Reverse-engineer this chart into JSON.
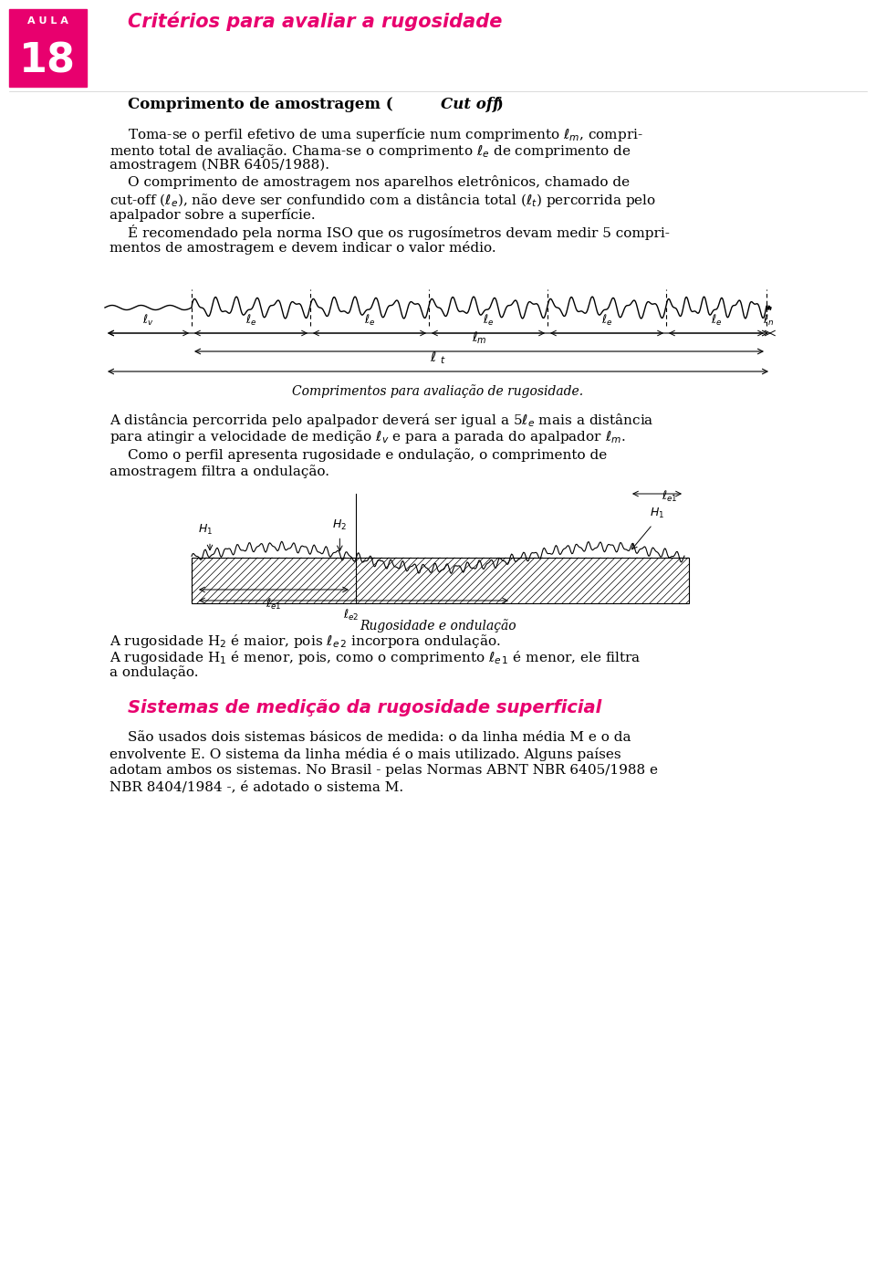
{
  "page_bg": "#ffffff",
  "header_bg": "#e8006e",
  "header_text_color": "#ffffff",
  "header_label": "A U L A",
  "header_number": "18",
  "title_color": "#e8006e",
  "title_text": "Critérios para avaliar a rugosidade",
  "body_color": "#000000",
  "section1_title": "Comprimento de amostragem (Cut off)",
  "para1": "Toma-se o perfil efetivo de uma superfície num comprimento $\\ell$m, compri-\nmento total de avaliação. Chama-se o comprimento $\\ell$e de comprimento de\namostragem (NBR 6405/1988).",
  "para2": "O comprimento de amostragem nos aparelhos eletrônicos, chamado de\ncut-off ($\\ell$e), não deve ser confundido com a distância total ($\\ell$t) percorrida pelo\napalpador sobre a superfície.",
  "para3": "É recomendado pela norma ISO que os rugosímetros devam medir 5 compri-\nmentos de amostragem e devem indicar o valor médio.",
  "fig1_caption": "Comprimentos para avaliação de rugosidade.",
  "para4": "A distância percorrida pelo apalpador deverá ser igual a 5$\\ell$e mais a distância\npara atingir a velocidade de medição $\\ell$v e para a parada do apalpador $\\ell$m.",
  "para5": "Como o perfil apresenta rugosidade e ondulação, o comprimento de\namostragem filtra a ondulação.",
  "fig2_caption": "Rugosidade e ondulação",
  "para6_line1": "A rugosidade H$_2$ é maior, pois$\\ell$$_{e\\,2}$ incorpora ondulação.",
  "para6_line2": "A rugosidade H$_1$ é menor, pois, como o comprimento$\\ell$$_{e\\,1}$ é menor, ele filtra",
  "para6_line3": "a ondulação.",
  "section2_title": "Sistemas de medição da rugosidade superficial",
  "para7": "São usados dois sistemas básicos de medida: o da linha média M e o da\nenvolvente E. O sistema da linha média é o mais utilizado. Alguns países\nadotam ambos os sistemas. No Brasil - pelas Normas ABNT NBR 6405/1988 e\nNBR 8404/1984 -, é adotado o sistema M."
}
